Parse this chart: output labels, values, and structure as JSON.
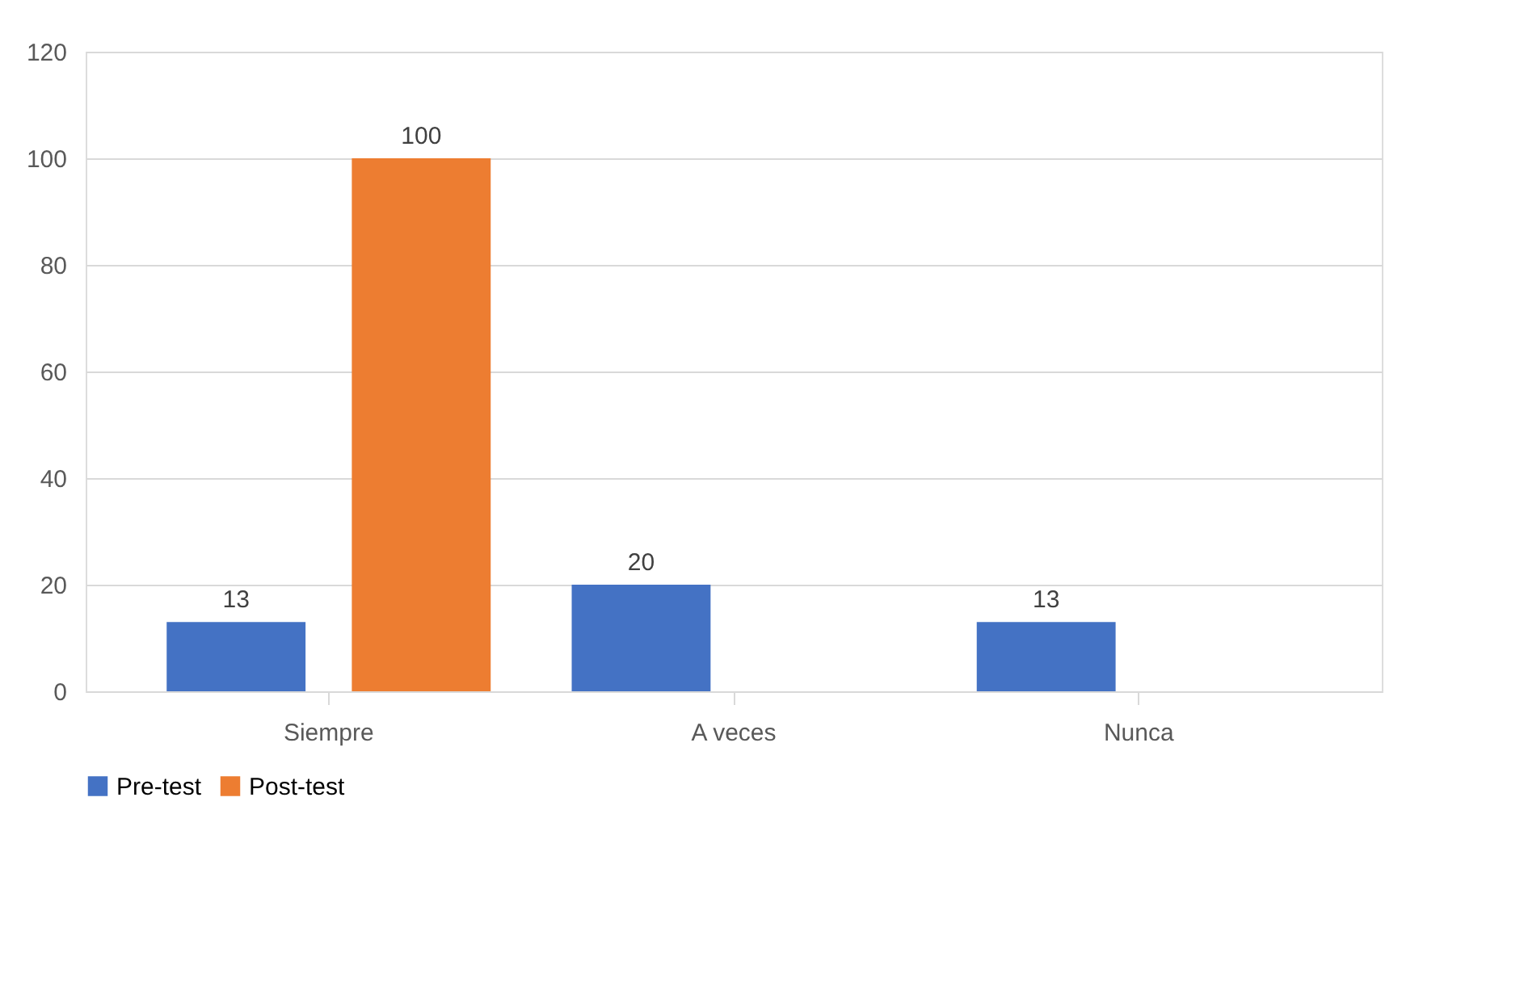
{
  "chart_data": {
    "type": "bar",
    "categories": [
      "Siempre",
      "A veces",
      "Nunca"
    ],
    "series": [
      {
        "name": "Pre-test",
        "color": "#4472c4",
        "values": [
          13,
          20,
          13
        ]
      },
      {
        "name": "Post-test",
        "color": "#ed7d31",
        "values": [
          100,
          null,
          null
        ]
      }
    ],
    "ylim": [
      0,
      120
    ],
    "yticks": [
      0,
      20,
      40,
      60,
      80,
      100,
      120
    ],
    "grid": "y",
    "legend": "bottom",
    "data_labels": true
  }
}
